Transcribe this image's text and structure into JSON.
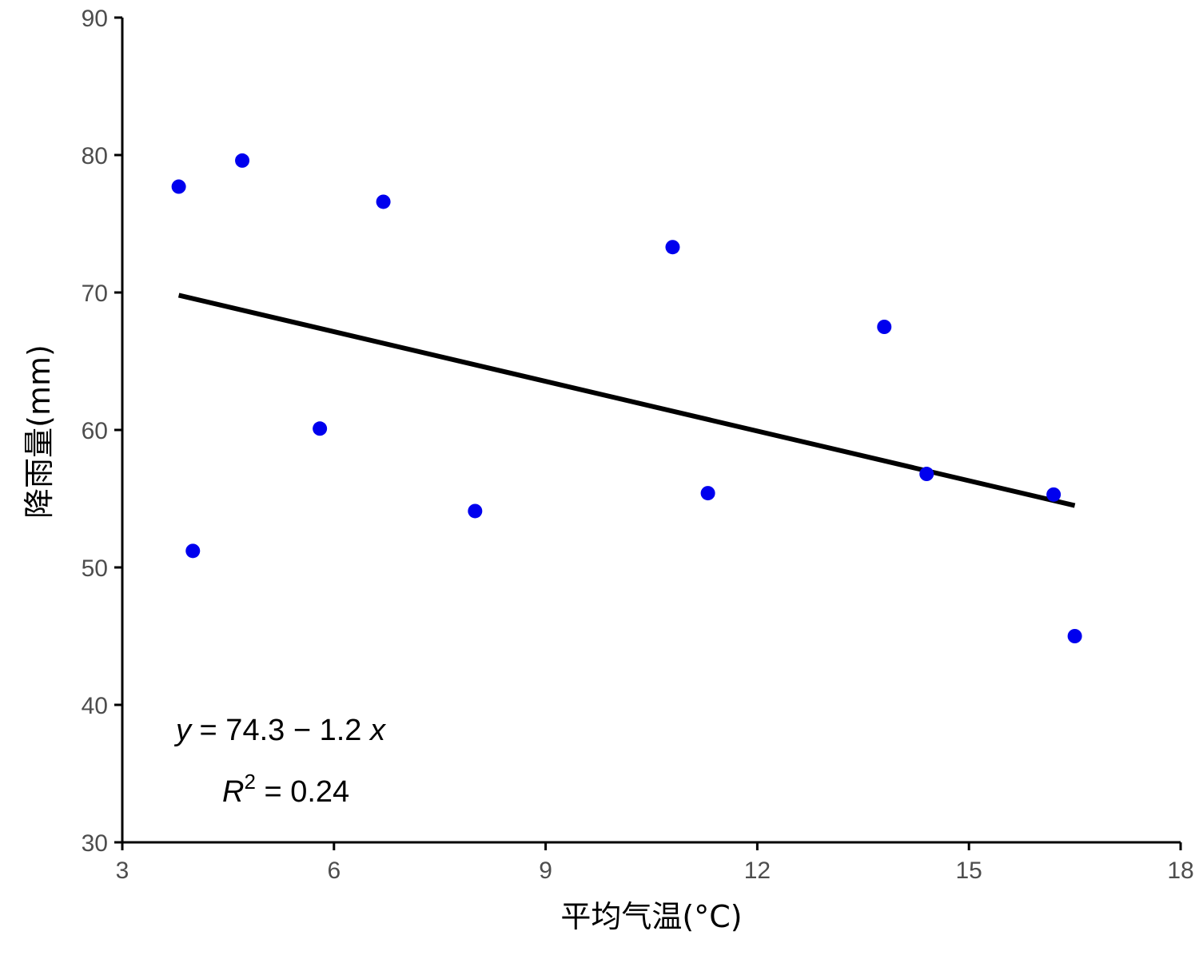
{
  "chart_data": {
    "type": "scatter",
    "xlabel": "平均气温(°C)",
    "ylabel": "降雨量(mm)",
    "xlim": [
      3,
      18
    ],
    "ylim": [
      30,
      90
    ],
    "x_ticks": [
      3,
      6,
      9,
      12,
      15,
      18
    ],
    "y_ticks": [
      30,
      40,
      50,
      60,
      70,
      80,
      90
    ],
    "grid": false,
    "point_color": "#0000ee",
    "line_color": "#000000",
    "points": [
      {
        "x": 3.8,
        "y": 77.7
      },
      {
        "x": 4.0,
        "y": 51.2
      },
      {
        "x": 4.7,
        "y": 79.6
      },
      {
        "x": 5.8,
        "y": 60.1
      },
      {
        "x": 6.7,
        "y": 76.6
      },
      {
        "x": 8.0,
        "y": 54.1
      },
      {
        "x": 10.8,
        "y": 73.3
      },
      {
        "x": 11.3,
        "y": 55.4
      },
      {
        "x": 13.8,
        "y": 67.5
      },
      {
        "x": 14.4,
        "y": 56.8
      },
      {
        "x": 16.2,
        "y": 55.3
      },
      {
        "x": 16.5,
        "y": 45.0
      }
    ],
    "regression": {
      "x_start": 3.8,
      "y_start": 69.8,
      "x_end": 16.5,
      "y_end": 54.5
    },
    "annotations": {
      "eq_y": "y",
      "eq_rest": " = 74.3 − 1.2 ",
      "eq_x": "x",
      "r2_r": "R",
      "r2_sup": "2",
      "r2_rest": " = 0.24"
    }
  }
}
